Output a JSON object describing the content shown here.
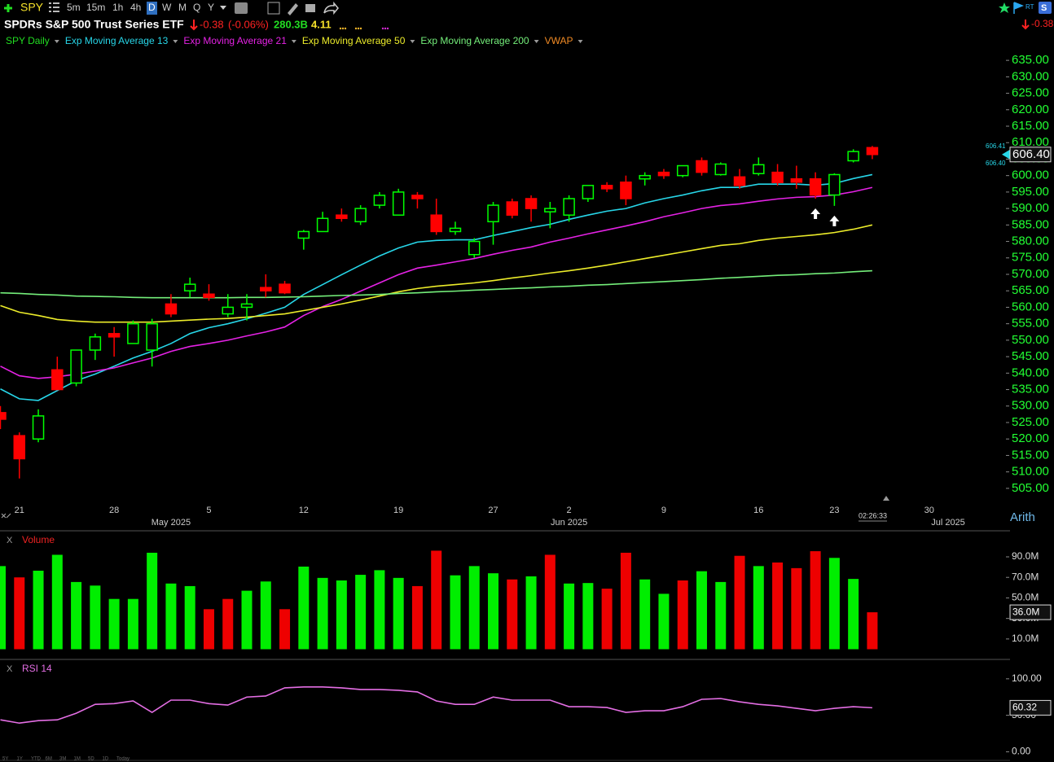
{
  "header": {
    "symbol": "SPY",
    "timeframes": [
      "5m",
      "15m",
      "1h",
      "4h",
      "D",
      "W",
      "M",
      "Q",
      "Y"
    ],
    "title": "SPDRs S&P 500 Trust Series ETF",
    "change": "-0.38",
    "change_pct": "(-0.06%)",
    "market_cap": "280.3B",
    "stat": "4.11",
    "rt": "RT",
    "badge": "S",
    "right_change": "-0.38",
    "bid": "606.41",
    "ask": "606.40",
    "clock": "02:26:33",
    "scale_mode": "Arith",
    "close_mark": "X",
    "ranges": [
      "5Y",
      "1Y",
      "YTD",
      "6M",
      "3M",
      "1M",
      "5D",
      "1D",
      "Today"
    ]
  },
  "chart_data": [
    {
      "type": "candlestick",
      "name": "SPY Daily",
      "up_color": "#00ff00",
      "down_color": "#ff0000",
      "categories": [
        null,
        "21",
        null,
        null,
        null,
        null,
        "28",
        null,
        null,
        null,
        null,
        "5",
        null,
        null,
        null,
        null,
        "12",
        null,
        null,
        null,
        null,
        "19",
        null,
        null,
        null,
        null,
        "27",
        null,
        null,
        null,
        "2",
        null,
        null,
        null,
        null,
        "9",
        null,
        null,
        null,
        null,
        "16",
        null,
        null,
        null,
        "23",
        null,
        null,
        null,
        null,
        "30",
        null
      ],
      "months": [
        null,
        null,
        null,
        null,
        null,
        null,
        null,
        null,
        null,
        "May 2025",
        null,
        null,
        null,
        null,
        null,
        null,
        null,
        null,
        null,
        null,
        null,
        null,
        null,
        null,
        null,
        null,
        null,
        null,
        null,
        null,
        "Jun 2025",
        null,
        null,
        null,
        null,
        null,
        null,
        null,
        null,
        null,
        null,
        null,
        null,
        null,
        null,
        null,
        null,
        null,
        null,
        null,
        "Jul 2025"
      ],
      "open": [
        528,
        521,
        520,
        541,
        537,
        547,
        552,
        549,
        547,
        561,
        565,
        564,
        558,
        560,
        566,
        567,
        581,
        583,
        588,
        586,
        591,
        588,
        594,
        588,
        583,
        576,
        586,
        592,
        593,
        589,
        588,
        593,
        597,
        598,
        599,
        601,
        600,
        604.5,
        600.3,
        599.6,
        600.6,
        601,
        599,
        599,
        594.1,
        604.5,
        608.5,
        null,
        null,
        null,
        null
      ],
      "high": [
        530,
        522,
        529,
        545,
        547,
        552,
        554,
        556,
        556.5,
        564,
        569,
        567,
        564,
        564,
        570,
        568,
        583.5,
        589,
        590,
        591,
        595,
        596,
        595,
        593,
        586,
        581,
        592,
        593,
        594,
        592,
        594,
        597,
        598,
        600,
        601,
        602,
        603,
        605.5,
        604,
        602,
        605.5,
        603.5,
        603,
        601,
        600.7,
        608,
        609,
        null,
        null,
        null,
        null
      ],
      "low": [
        523,
        508,
        519,
        535,
        536,
        544,
        545,
        549,
        542,
        557,
        563,
        562,
        557,
        556,
        563,
        564,
        577.5,
        583,
        586,
        585,
        590,
        588,
        590,
        582,
        582,
        575,
        579,
        587,
        586,
        584,
        586,
        592,
        595,
        591,
        597,
        599,
        599.5,
        600,
        600,
        596,
        600,
        597,
        596,
        593,
        590.8,
        604,
        605,
        null,
        null,
        null,
        null
      ],
      "close": [
        526,
        514,
        527,
        535,
        547,
        551,
        551,
        555,
        555,
        558,
        567,
        563,
        560,
        561,
        565,
        564.4,
        583,
        587,
        587,
        590,
        594,
        595,
        593,
        583,
        584,
        580,
        591,
        588,
        590,
        590,
        593,
        597,
        596,
        593,
        600,
        600,
        603,
        601,
        603.5,
        597,
        603.3,
        597.9,
        598,
        594.1,
        600.3,
        607.3,
        606.4,
        null,
        null,
        null,
        null
      ],
      "close_labels": [
        null,
        null,
        null,
        null,
        null,
        null,
        null,
        null,
        null,
        null,
        null,
        null,
        null,
        null,
        null,
        null,
        null,
        null,
        null,
        null,
        null,
        null,
        null,
        null,
        null,
        null,
        null,
        null,
        null,
        null,
        null,
        null,
        null,
        null,
        null,
        null,
        null,
        null,
        null,
        null,
        null,
        null,
        null,
        null,
        null,
        null,
        "606.40",
        null,
        null,
        null,
        null
      ],
      "overlays": [
        {
          "name": "Exp Moving Average 13",
          "color": "#27d6e8",
          "values": [
            535.2,
            532.2,
            531.7,
            534.7,
            537.7,
            539.7,
            542.1,
            544.6,
            546.6,
            549,
            552,
            553.8,
            555,
            556.5,
            558.2,
            560,
            563.9,
            566.9,
            569.9,
            572.8,
            575.6,
            578,
            579.8,
            580.3,
            580.5,
            580.5,
            581.8,
            583,
            584.2,
            585.2,
            586.7,
            588,
            589.2,
            590,
            591.7,
            593,
            594.1,
            595.4,
            596.4,
            596.4,
            597.4,
            597.4,
            597.4,
            597.1,
            597.6,
            599.1,
            600.3,
            null,
            null,
            null,
            null
          ]
        },
        {
          "name": "Exp Moving Average 21",
          "color": "#e522e5",
          "values": [
            542.1,
            539.2,
            538.4,
            538.9,
            539.7,
            540.6,
            541.6,
            543.1,
            544.6,
            546.6,
            548.1,
            549,
            550,
            551.3,
            552.5,
            554,
            557.5,
            560.2,
            562.4,
            564.9,
            567.4,
            569.9,
            571.9,
            572.8,
            573.8,
            574.8,
            576.1,
            577.3,
            578.3,
            579.8,
            581,
            582.3,
            583.5,
            584.7,
            586,
            587.5,
            588.7,
            590,
            590.9,
            591.4,
            592.2,
            592.9,
            593.4,
            593.6,
            594.1,
            595.1,
            596.4,
            null,
            null,
            null,
            null
          ]
        },
        {
          "name": "Exp Moving Average 50",
          "color": "#ecec2a",
          "values": [
            560.5,
            558.5,
            557.5,
            556.3,
            555.8,
            555.5,
            555.5,
            555.5,
            555.5,
            555.8,
            556.1,
            556.4,
            556.6,
            557,
            557.5,
            558,
            559,
            560,
            561,
            562.2,
            563.4,
            564.7,
            565.7,
            566.4,
            566.9,
            567.4,
            568.1,
            568.9,
            569.6,
            570.4,
            571.1,
            571.9,
            572.8,
            573.8,
            574.8,
            575.8,
            576.8,
            577.8,
            578.8,
            579.3,
            580.3,
            581,
            581.5,
            582,
            582.7,
            583.7,
            585,
            null,
            null,
            null,
            null
          ]
        },
        {
          "name": "Exp Moving Average 200",
          "color": "#74ee7a",
          "values": [
            564.4,
            564.2,
            563.9,
            563.7,
            563.4,
            563.3,
            563.2,
            563,
            562.9,
            562.9,
            562.9,
            562.9,
            562.9,
            563,
            563,
            563.1,
            563.2,
            563.4,
            563.6,
            563.7,
            563.9,
            564.2,
            564.4,
            564.7,
            564.9,
            565.2,
            565.4,
            565.7,
            565.9,
            566.2,
            566.4,
            566.7,
            566.9,
            567.2,
            567.5,
            567.8,
            568.1,
            568.4,
            568.8,
            569.1,
            569.4,
            569.7,
            569.9,
            570.2,
            570.4,
            570.8,
            571.1,
            null,
            null,
            null,
            null
          ]
        }
      ],
      "extra_legend": {
        "name": "VWAP",
        "color": "#f08a24"
      },
      "ylim": [
        502,
        638
      ],
      "yticks": [
        {
          "value": 505,
          "label": "505.00"
        },
        {
          "value": 510,
          "label": "510.00"
        },
        {
          "value": 515,
          "label": "515.00"
        },
        {
          "value": 520,
          "label": "520.00"
        },
        {
          "value": 525,
          "label": "525.00"
        },
        {
          "value": 530,
          "label": "530.00"
        },
        {
          "value": 535,
          "label": "535.00"
        },
        {
          "value": 540,
          "label": "540.00"
        },
        {
          "value": 545,
          "label": "545.00"
        },
        {
          "value": 550,
          "label": "550.00"
        },
        {
          "value": 555,
          "label": "555.00"
        },
        {
          "value": 560,
          "label": "560.00"
        },
        {
          "value": 565,
          "label": "565.00"
        },
        {
          "value": 570,
          "label": "570.00"
        },
        {
          "value": 575,
          "label": "575.00"
        },
        {
          "value": 580,
          "label": "580.00"
        },
        {
          "value": 585,
          "label": "585.00"
        },
        {
          "value": 590,
          "label": "590.00"
        },
        {
          "value": 595,
          "label": "595.00"
        },
        {
          "value": 600,
          "label": "600.00"
        },
        {
          "value": 605,
          "label": "605.00"
        },
        {
          "value": 610,
          "label": "610.00"
        },
        {
          "value": 615,
          "label": "615.00"
        },
        {
          "value": 620,
          "label": "620.00"
        },
        {
          "value": 625,
          "label": "625.00"
        },
        {
          "value": 630,
          "label": "630.00"
        },
        {
          "value": 635,
          "label": "635.00"
        }
      ],
      "axis_color": "#22ff33"
    },
    {
      "type": "bar",
      "title": "Volume",
      "values": [
        81,
        70,
        76.5,
        92,
        65.5,
        62,
        49,
        49,
        94,
        64,
        61.5,
        39,
        49,
        57,
        66,
        39,
        80.5,
        69.5,
        67,
        72.5,
        77,
        69.5,
        61.5,
        96,
        72,
        81,
        74,
        68,
        71,
        92,
        64,
        64.5,
        59,
        94,
        68,
        54,
        67,
        76,
        65.5,
        91,
        81,
        84.5,
        79,
        95.5,
        89,
        68.5,
        36,
        null,
        null,
        null,
        null
      ],
      "value_labels": [
        null,
        null,
        null,
        null,
        null,
        null,
        null,
        null,
        null,
        null,
        null,
        null,
        null,
        null,
        null,
        null,
        null,
        null,
        null,
        null,
        null,
        null,
        null,
        null,
        null,
        null,
        null,
        null,
        null,
        null,
        null,
        null,
        null,
        null,
        null,
        null,
        null,
        null,
        null,
        null,
        null,
        null,
        null,
        null,
        null,
        null,
        "36.0M",
        null,
        null,
        null,
        null
      ],
      "colors": [
        "#00ee00",
        "#ee0000",
        "#00ee00",
        "#00ee00",
        "#00ee00",
        "#00ee00",
        "#00ee00",
        "#00ee00",
        "#00ee00",
        "#00ee00",
        "#00ee00",
        "#ee0000",
        "#ee0000",
        "#00ee00",
        "#00ee00",
        "#ee0000",
        "#00ee00",
        "#00ee00",
        "#00ee00",
        "#00ee00",
        "#00ee00",
        "#00ee00",
        "#ee0000",
        "#ee0000",
        "#00ee00",
        "#00ee00",
        "#00ee00",
        "#ee0000",
        "#00ee00",
        "#ee0000",
        "#00ee00",
        "#00ee00",
        "#ee0000",
        "#ee0000",
        "#00ee00",
        "#00ee00",
        "#ee0000",
        "#00ee00",
        "#00ee00",
        "#ee0000",
        "#00ee00",
        "#ee0000",
        "#ee0000",
        "#ee0000",
        "#00ee00",
        "#00ee00",
        "#ee0000",
        null,
        null,
        null,
        null
      ],
      "title_color": "#ee2222",
      "ylim": [
        -2,
        113
      ],
      "yticks": [
        {
          "value": 10,
          "label": "10.0M"
        },
        {
          "value": 30,
          "label": "30.0M"
        },
        {
          "value": 50,
          "label": "50.0M"
        },
        {
          "value": 70,
          "label": "70.0M"
        },
        {
          "value": 90,
          "label": "90.0M"
        }
      ]
    },
    {
      "type": "line",
      "title": "RSI 14",
      "color": "#e46ee4",
      "values": [
        43.8,
        39.3,
        42.7,
        43.8,
        52.8,
        65,
        66,
        69.7,
        54,
        70.8,
        70.8,
        66,
        64,
        75,
        76.4,
        87.6,
        88.8,
        88.8,
        87.6,
        85.4,
        85.4,
        84.3,
        82,
        69.7,
        65,
        65,
        75,
        70.8,
        70.8,
        70.8,
        61.8,
        61.8,
        60.7,
        54,
        56.2,
        56.2,
        61.8,
        71.9,
        73,
        68.5,
        65,
        62.9,
        59.6,
        56.2,
        59.6,
        61.8,
        60.32,
        null,
        null,
        null,
        null
      ],
      "ylim": [
        -14,
        121
      ],
      "yticks": [
        {
          "value": 0,
          "label": "0.00"
        },
        {
          "value": 50,
          "label": "50.00"
        },
        {
          "value": 100,
          "label": "100.00"
        }
      ]
    }
  ]
}
